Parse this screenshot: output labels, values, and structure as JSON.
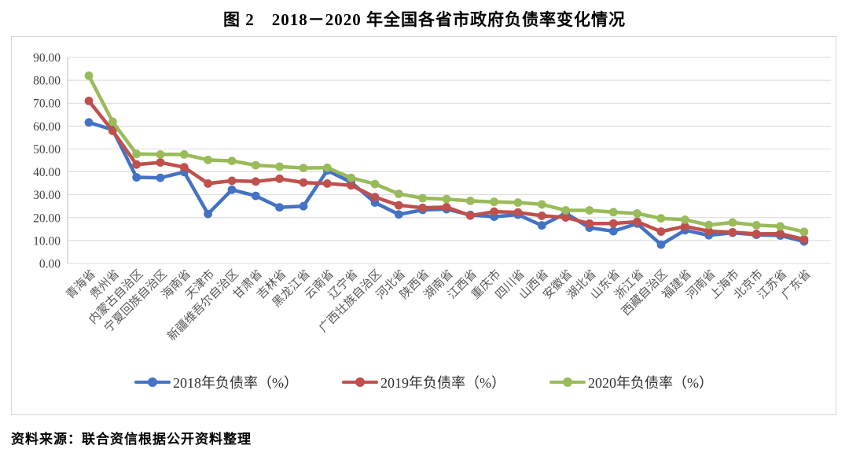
{
  "title": "图 2　2018－2020 年全国各省市政府负债率变化情况",
  "source_note": "资料来源：联合资信根据公开资料整理",
  "chart_data": {
    "type": "line",
    "title": "图 2　2018－2020 年全国各省市政府负债率变化情况",
    "xlabel": "",
    "ylabel": "",
    "ylim": [
      0,
      90
    ],
    "y_tick_step": 10,
    "y_ticks": [
      "0.00",
      "10.00",
      "20.00",
      "30.00",
      "40.00",
      "50.00",
      "60.00",
      "70.00",
      "80.00",
      "90.00"
    ],
    "grid": "horizontal",
    "legend_position": "bottom",
    "marker": "circle",
    "categories": [
      "青海省",
      "贵州省",
      "内蒙古自治区",
      "宁夏回族自治区",
      "海南省",
      "天津市",
      "新疆维吾尔自治区",
      "甘肃省",
      "吉林省",
      "黑龙江省",
      "云南省",
      "辽宁省",
      "广西壮族自治区",
      "河北省",
      "陕西省",
      "湖南省",
      "江西省",
      "重庆市",
      "四川省",
      "山西省",
      "安徽省",
      "湖北省",
      "山东省",
      "浙江省",
      "西藏自治区",
      "福建省",
      "河南省",
      "上海市",
      "北京市",
      "江苏省",
      "广东省"
    ],
    "series": [
      {
        "name": "2018年负债率（%）",
        "color": "#4472c4",
        "values": [
          61.6,
          58.4,
          37.6,
          37.4,
          39.9,
          21.6,
          32.2,
          29.5,
          24.5,
          25.0,
          40.6,
          35.5,
          26.6,
          21.4,
          23.4,
          23.7,
          21.2,
          20.4,
          21.3,
          16.6,
          21.9,
          15.6,
          14.1,
          17.4,
          8.2,
          14.5,
          12.3,
          13.4,
          12.5,
          12.2,
          9.6
        ]
      },
      {
        "name": "2019年负债率（%）",
        "color": "#c0504d",
        "values": [
          71.0,
          57.9,
          43.2,
          44.1,
          42.0,
          34.9,
          36.1,
          35.8,
          37.0,
          35.3,
          34.9,
          34.1,
          29.0,
          25.4,
          24.3,
          24.6,
          20.9,
          22.6,
          22.3,
          20.8,
          20.1,
          17.4,
          17.5,
          18.2,
          13.9,
          16.2,
          14.1,
          13.6,
          12.9,
          13.0,
          10.5
        ]
      },
      {
        "name": "2020年负债率（%）",
        "color": "#9abb59",
        "values": [
          82.0,
          61.9,
          47.8,
          47.6,
          47.6,
          45.2,
          44.8,
          42.9,
          42.3,
          41.7,
          41.8,
          37.4,
          34.7,
          30.4,
          28.5,
          28.1,
          27.3,
          26.9,
          26.6,
          25.8,
          23.2,
          23.2,
          22.4,
          21.8,
          19.7,
          19.1,
          16.8,
          17.9,
          16.7,
          16.2,
          13.8
        ]
      }
    ],
    "colors": {
      "gridline": "#d9d9d9",
      "axis": "#bfbfbf",
      "y_tick_label": "#404040",
      "x_tick_label": "#595959",
      "frame_border": "#d6d6d6"
    }
  }
}
